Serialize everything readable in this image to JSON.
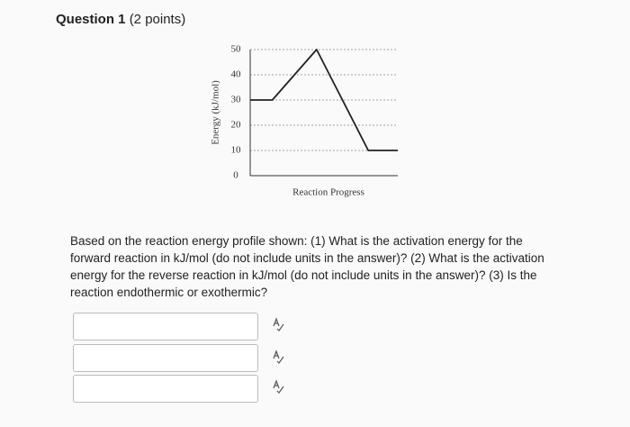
{
  "question": {
    "title": "Question 1",
    "points": "(2 points)"
  },
  "chart_data": {
    "type": "line",
    "ylabel": "Energy (kJ/mol)",
    "xlabel": "Reaction Progress",
    "x": [
      0,
      15,
      45,
      80,
      100
    ],
    "xlim": [
      0,
      100
    ],
    "series": [
      {
        "color": "#222222",
        "values": [
          30,
          30,
          50,
          10,
          10
        ]
      }
    ],
    "ylim": [
      0,
      50
    ],
    "yticks": [
      0,
      10,
      20,
      30,
      40,
      50
    ],
    "grid": true
  },
  "prompt": "Based on the reaction energy profile shown: (1) What is the activation energy for the forward reaction in kJ/mol (do not include units in the answer)? (2) What is the activation energy for the reverse reaction in kJ/mol (do not include units in the answer)? (3) Is the reaction endothermic or exothermic?"
}
